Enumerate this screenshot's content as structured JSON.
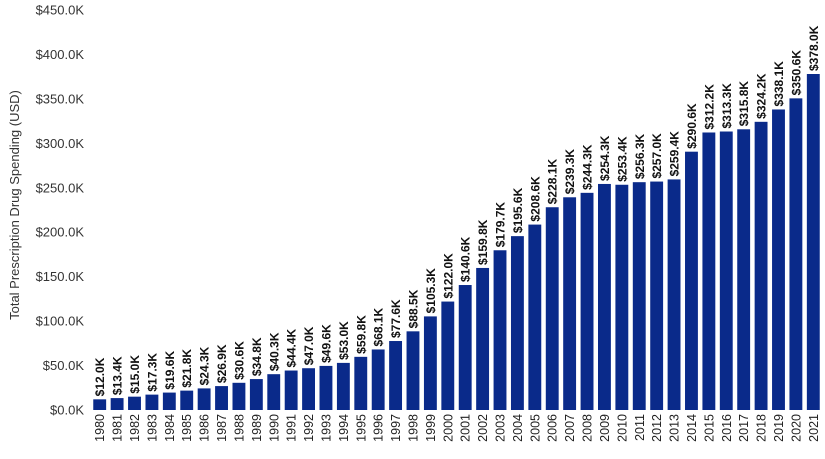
{
  "chart_data": {
    "type": "bar",
    "title": "",
    "xlabel": "",
    "ylabel": "Total Prescription Drug Spending (USD)",
    "ylim": [
      0,
      450
    ],
    "y_unit": "thousands USD",
    "grid": false,
    "bar_color": "#0a2a8a",
    "y_ticks": [
      0,
      50,
      100,
      150,
      200,
      250,
      300,
      350,
      400,
      450
    ],
    "y_tick_labels": [
      "$0.0K",
      "$50.0K",
      "$100.0K",
      "$150.0K",
      "$200.0K",
      "$250.0K",
      "$300.0K",
      "$350.0K",
      "$400.0K",
      "$450.0K"
    ],
    "categories": [
      "1980",
      "1981",
      "1982",
      "1983",
      "1984",
      "1985",
      "1986",
      "1987",
      "1988",
      "1989",
      "1990",
      "1991",
      "1992",
      "1993",
      "1994",
      "1995",
      "1996",
      "1997",
      "1998",
      "1999",
      "2000",
      "2001",
      "2002",
      "2003",
      "2004",
      "2005",
      "2006",
      "2007",
      "2008",
      "2009",
      "2010",
      "2011",
      "2012",
      "2013",
      "2014",
      "2015",
      "2016",
      "2017",
      "2018",
      "2019",
      "2020",
      "2021"
    ],
    "values": [
      12.0,
      13.4,
      15.0,
      17.3,
      19.6,
      21.8,
      24.3,
      26.9,
      30.6,
      34.8,
      40.3,
      44.4,
      47.0,
      49.6,
      53.0,
      59.8,
      68.1,
      77.6,
      88.5,
      105.3,
      122.0,
      140.6,
      159.8,
      179.7,
      195.6,
      208.6,
      228.1,
      239.3,
      244.3,
      254.3,
      253.4,
      256.3,
      257.0,
      259.4,
      290.6,
      312.2,
      313.3,
      315.8,
      324.2,
      338.1,
      350.6,
      378.0
    ],
    "data_labels": [
      "$12.0K",
      "$13.4K",
      "$15.0K",
      "$17.3K",
      "$19.6K",
      "$21.8K",
      "$24.3K",
      "$26.9K",
      "$30.6K",
      "$34.8K",
      "$40.3K",
      "$44.4K",
      "$47.0K",
      "$49.6K",
      "$53.0K",
      "$59.8K",
      "$68.1K",
      "$77.6K",
      "$88.5K",
      "$105.3K",
      "$122.0K",
      "$140.6K",
      "$159.8K",
      "$179.7K",
      "$195.6K",
      "$208.6K",
      "$228.1K",
      "$239.3K",
      "$244.3K",
      "$254.3K",
      "$253.4K",
      "$256.3K",
      "$257.0K",
      "$259.4K",
      "$290.6K",
      "$312.2K",
      "$313.3K",
      "$315.8K",
      "$324.2K",
      "$338.1K",
      "$350.6K",
      "$378.0K"
    ]
  }
}
